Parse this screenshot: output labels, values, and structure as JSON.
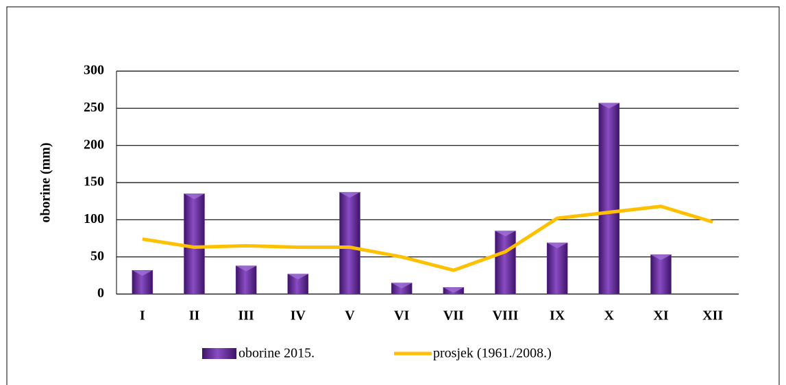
{
  "chart_data": {
    "type": "combo",
    "categories": [
      "I",
      "II",
      "III",
      "IV",
      "V",
      "VI",
      "VII",
      "VIII",
      "IX",
      "X",
      "XI",
      "XII"
    ],
    "y_label": "oborine (mm)",
    "ylim": [
      0,
      300
    ],
    "yticks": [
      0,
      50,
      100,
      150,
      200,
      250,
      300
    ],
    "grid": true,
    "series": [
      {
        "name": "oborine 2015.",
        "type": "bar",
        "color": "#6a2fa0",
        "values": [
          32,
          135,
          38,
          27,
          137,
          15,
          9,
          85,
          69,
          257,
          53,
          0
        ]
      },
      {
        "name": "prosjek (1961./2008.)",
        "type": "line",
        "color": "#ffc000",
        "values": [
          74,
          63,
          65,
          63,
          63,
          50,
          32,
          57,
          102,
          110,
          118,
          97
        ]
      }
    ]
  }
}
